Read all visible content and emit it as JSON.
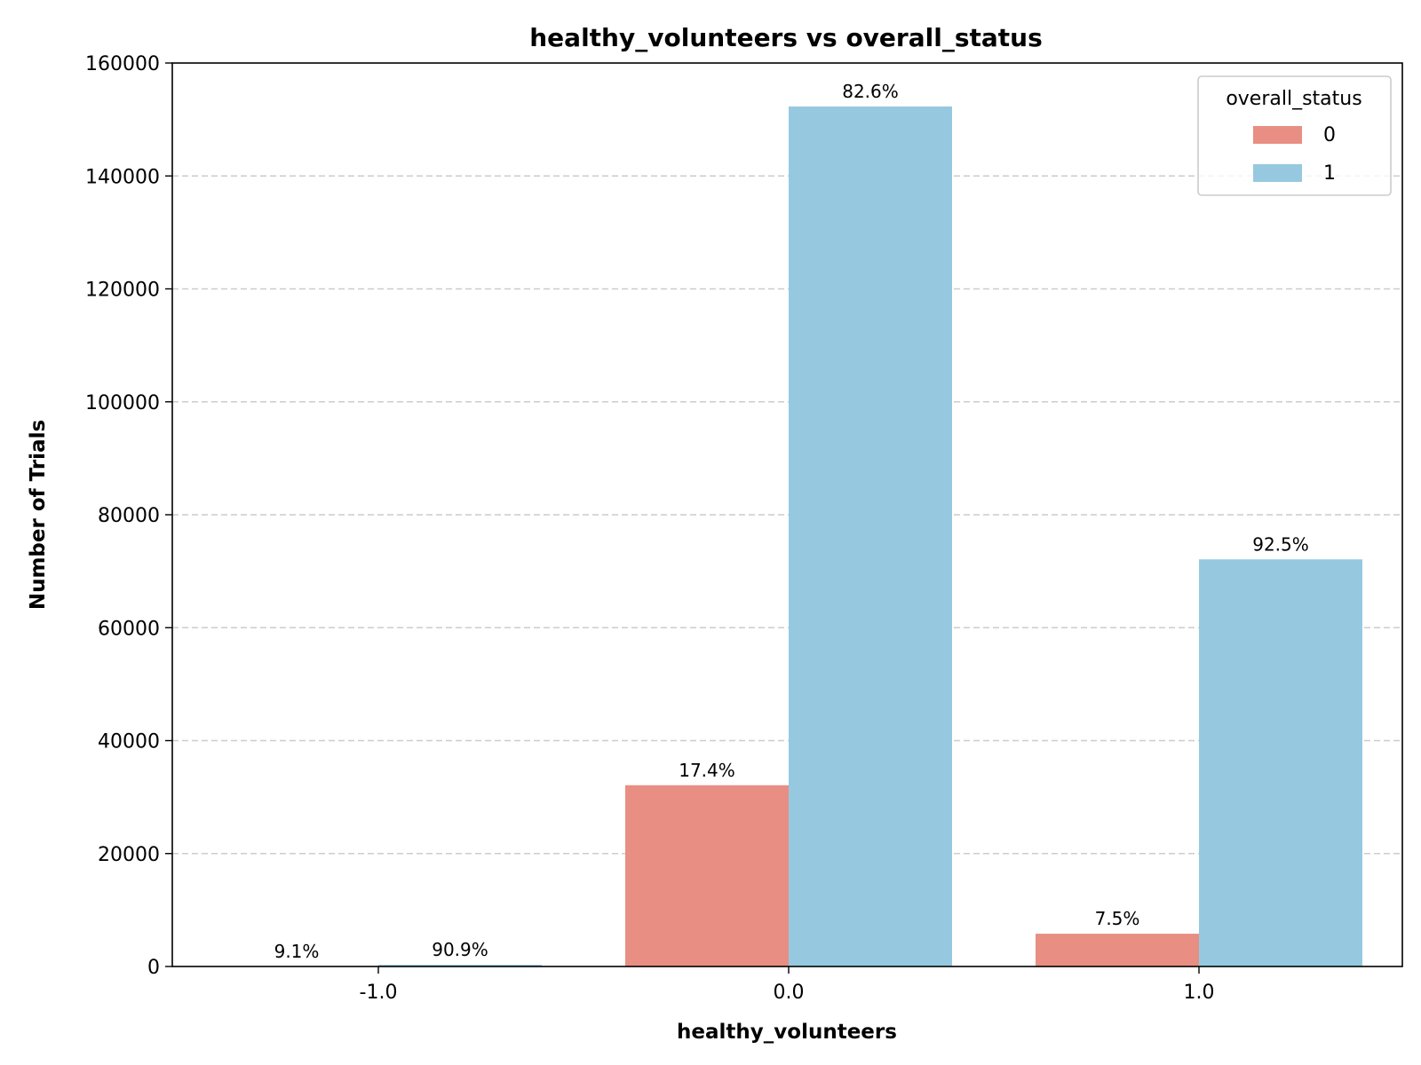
{
  "chart_data": {
    "type": "bar",
    "title": "healthy_volunteers vs overall_status",
    "xlabel": "healthy_volunteers",
    "ylabel": "Number of Trials",
    "categories": [
      "-1.0",
      "0.0",
      "1.0"
    ],
    "ylim": [
      0,
      160000
    ],
    "yticks": [
      0,
      20000,
      40000,
      60000,
      80000,
      100000,
      120000,
      140000,
      160000
    ],
    "ytick_labels": [
      "0",
      "20000",
      "40000",
      "60000",
      "80000",
      "100000",
      "120000",
      "140000",
      "160000"
    ],
    "grid": "y-dashed",
    "legend": {
      "title": "overall_status",
      "placement": "top-right"
    },
    "series": [
      {
        "name": "0",
        "color": "#e88e83",
        "values": [
          30,
          32100,
          5800
        ],
        "labels": [
          "9.1%",
          "17.4%",
          "7.5%"
        ]
      },
      {
        "name": "1",
        "color": "#96c9df",
        "values": [
          300,
          152300,
          72100
        ],
        "labels": [
          "90.9%",
          "82.6%",
          "92.5%"
        ]
      }
    ]
  }
}
